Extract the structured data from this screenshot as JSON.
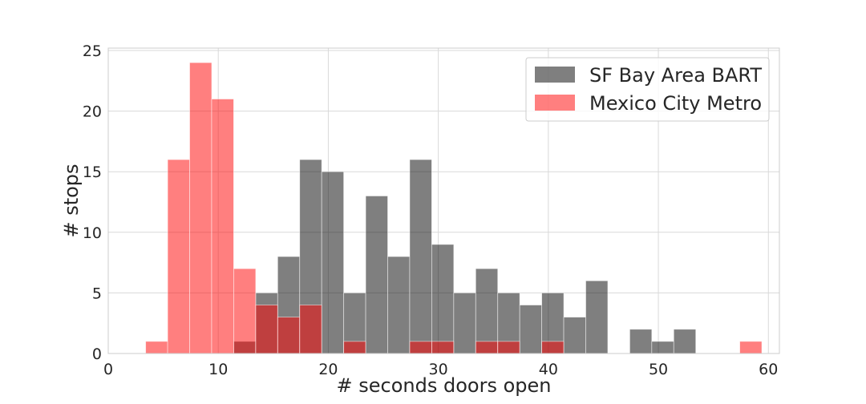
{
  "chart_data": {
    "type": "bar",
    "subtype": "histogram",
    "title": "",
    "xlabel": "# seconds doors open",
    "ylabel": "# stops",
    "xlim": [
      0,
      61
    ],
    "ylim": [
      0,
      25.2
    ],
    "xticks": [
      0,
      10,
      20,
      30,
      40,
      50,
      60
    ],
    "yticks": [
      0,
      5,
      10,
      15,
      20,
      25
    ],
    "grid": true,
    "legend_position": "top-right",
    "bin_width": 2,
    "series": [
      {
        "name": "SF Bay Area BART",
        "color": "#000000",
        "opacity": 0.5,
        "bins": [
          {
            "start": 11.4,
            "count": 1
          },
          {
            "start": 13.4,
            "count": 5
          },
          {
            "start": 15.4,
            "count": 8
          },
          {
            "start": 17.4,
            "count": 16
          },
          {
            "start": 19.4,
            "count": 15
          },
          {
            "start": 21.4,
            "count": 5
          },
          {
            "start": 23.4,
            "count": 13
          },
          {
            "start": 25.4,
            "count": 8
          },
          {
            "start": 27.4,
            "count": 16
          },
          {
            "start": 29.4,
            "count": 9
          },
          {
            "start": 31.4,
            "count": 5
          },
          {
            "start": 33.4,
            "count": 7
          },
          {
            "start": 35.4,
            "count": 5
          },
          {
            "start": 37.4,
            "count": 4
          },
          {
            "start": 39.4,
            "count": 5
          },
          {
            "start": 41.4,
            "count": 3
          },
          {
            "start": 43.4,
            "count": 6
          },
          {
            "start": 47.4,
            "count": 2
          },
          {
            "start": 49.4,
            "count": 1
          },
          {
            "start": 51.4,
            "count": 2
          }
        ]
      },
      {
        "name": "Mexico City Metro",
        "color": "#ff0000",
        "opacity": 0.5,
        "bins": [
          {
            "start": 3.4,
            "count": 1
          },
          {
            "start": 5.4,
            "count": 16
          },
          {
            "start": 7.4,
            "count": 24
          },
          {
            "start": 9.4,
            "count": 21
          },
          {
            "start": 11.4,
            "count": 7
          },
          {
            "start": 13.4,
            "count": 4
          },
          {
            "start": 15.4,
            "count": 3
          },
          {
            "start": 17.4,
            "count": 4
          },
          {
            "start": 21.4,
            "count": 1
          },
          {
            "start": 27.4,
            "count": 1
          },
          {
            "start": 29.4,
            "count": 1
          },
          {
            "start": 33.4,
            "count": 1
          },
          {
            "start": 35.4,
            "count": 1
          },
          {
            "start": 39.4,
            "count": 1
          },
          {
            "start": 57.4,
            "count": 1
          }
        ]
      }
    ]
  }
}
